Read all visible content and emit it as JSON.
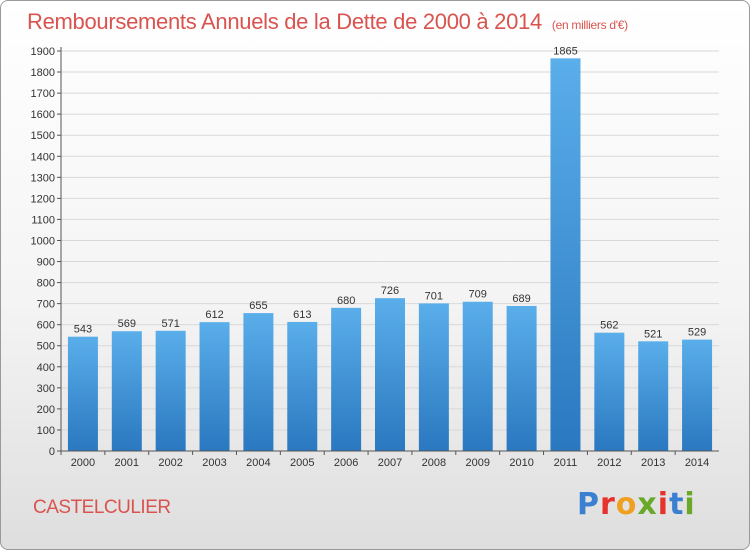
{
  "title": "Remboursements Annuels de la Dette de 2000 à 2014",
  "subtitle": "(en milliers d'€)",
  "commune": "CASTELCULIER",
  "logo": {
    "letters": [
      "P",
      "r",
      "o",
      "x",
      "i",
      "t",
      "i"
    ],
    "colors": [
      "#3a7fd0",
      "#e5322d",
      "#f0a020",
      "#6aa82a",
      "#e5322d",
      "#3a7fd0",
      "#6aa82a"
    ]
  },
  "colors": {
    "bar": "#4a9ee3",
    "title": "#d9534f",
    "grid": "#d8d8d8"
  },
  "chart_data": {
    "type": "bar",
    "categories": [
      "2000",
      "2001",
      "2002",
      "2003",
      "2004",
      "2005",
      "2006",
      "2007",
      "2008",
      "2009",
      "2010",
      "2011",
      "2012",
      "2013",
      "2014"
    ],
    "values": [
      543,
      569,
      571,
      612,
      655,
      613,
      680,
      726,
      701,
      709,
      689,
      1865,
      562,
      521,
      529
    ],
    "ylim": [
      0,
      1900
    ],
    "yticks": [
      0,
      100,
      200,
      300,
      400,
      500,
      600,
      700,
      800,
      900,
      1000,
      1100,
      1200,
      1300,
      1400,
      1500,
      1600,
      1700,
      1800,
      1900
    ],
    "grid": true
  }
}
